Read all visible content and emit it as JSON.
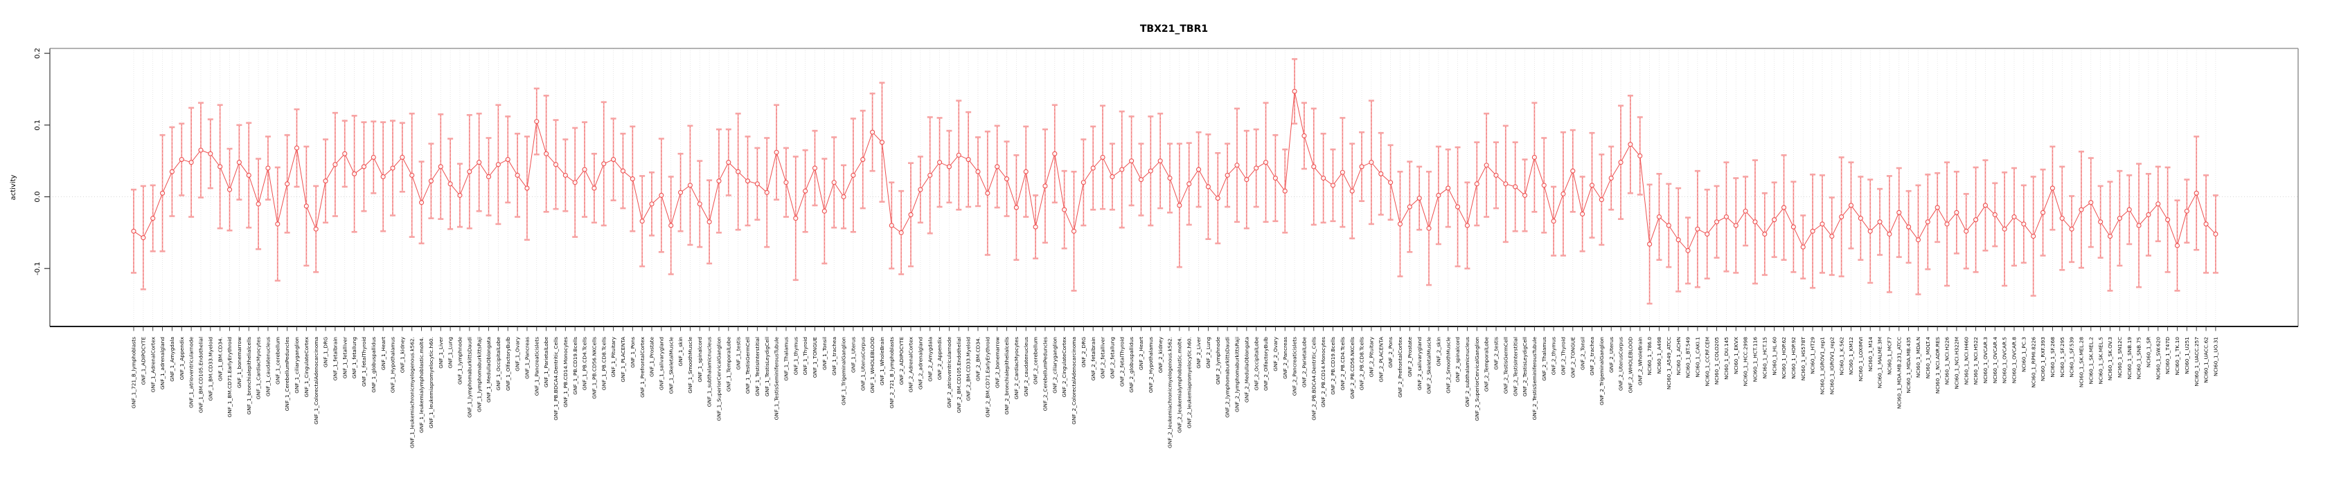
{
  "window": {
    "title": "TBX21_TBR1"
  },
  "chart_data": {
    "type": "line",
    "subtype": "point-with-error-bars",
    "title": "TBX21_TBR1",
    "xlabel": "",
    "ylabel": "activity",
    "ylim": [
      -0.18,
      0.207
    ],
    "ytick_labels": [
      "0.2",
      "0.1",
      "0.0",
      "-0.1"
    ],
    "ytick_values": [
      0.2,
      0.1,
      0.0,
      -0.1
    ],
    "zero_reference_line": true,
    "grid": "vertical-dotted-line-per-category",
    "legend": "none",
    "style": {
      "point_shape": "open-circle",
      "point_color": "#ee4e4e",
      "line_color": "#ee4e4e",
      "error_line_color": "#f07575",
      "error_line_dashed": true,
      "error_cap_color": "#f7a3a3",
      "grid_color": "#dcdcdc",
      "zero_line_color": "#c9c9c9",
      "box_color": "#9a9a9a",
      "axis_color": "#333333"
    },
    "categories": [
      "GNF_1_721_B_lymphoblasts",
      "GNF_1_ADIPOCYTE",
      "GNF_1_AdrenalCortex",
      "GNF_1_adrenalgland",
      "GNF_1_Amygdala",
      "GNF_1_Appendix",
      "GNF_1_atrioventricularnode",
      "GNF_1_BM.CD105.Endothelial",
      "GNF_1_BM.CD33.Myeloid",
      "GNF_1_BM.CD34.",
      "GNF_1_BM.CD71.EarlyErythroid",
      "GNF_1_bonemarrow",
      "GNF_1_bronchialepithelialcells",
      "GNF_1_CardiacMyocytes",
      "GNF_1_caudatenucleus",
      "GNF_1_cerebellum",
      "GNF_1_CerebellumPeduncles",
      "GNF_1_ciliaryganglion",
      "GNF_1_CingulateCortex",
      "GNF_1_ColorectalAdenocarcinoma",
      "GNF_1_DRG",
      "GNF_1_fetalbrain",
      "GNF_1_fetalliver",
      "GNF_1_fetallung",
      "GNF_1_fetalThyroid",
      "GNF_1_globuspallidus",
      "GNF_1_Heart",
      "GNF_1_Hypothalamus",
      "GNF_1_kidney",
      "GNF_1_leukemiachronicmyelogenous.k562.",
      "GNF_1_leukemialymphoblastic.molt4.",
      "GNF_1_leukemiapromyelocytic.h60.",
      "GNF_1_Liver",
      "GNF_1_Lung",
      "GNF_1_lymphnode",
      "GNF_1_lymphomaburkittsDaudi",
      "GNF_1_lymphomaburkittsRaji",
      "GNF_1_MedullaOblongata",
      "GNF_1_OccipitalLobe",
      "GNF_1_OlfactoryBulb",
      "GNF_1_Ovary",
      "GNF_1_Pancreas",
      "GNF_1_Pancreaticislets",
      "GNF_1_ParietalLobe",
      "GNF_1_PB.BDCA4.Dentritic_Cells",
      "GNF_1_PB.CD14.Monocytes",
      "GNF_1_PB.CD19.Bcells",
      "GNF_1_PB.CD4.Tcells",
      "GNF_1_PB.CD56.NKCells",
      "GNF_1_PB.CD8.Tcells",
      "GNF_1_Pituitary",
      "GNF_1_PLACENTA",
      "GNF_1_Pons",
      "GNF_1_PrefrontalCortex",
      "GNF_1_Prostate",
      "GNF_1_salivarygland",
      "GNF_1_SkeletalMuscle",
      "GNF_1_skin",
      "GNF_1_SmoothMuscle",
      "GNF_1_spinalcord",
      "GNF_1_subthalamicnucleus",
      "GNF_1_SuperiorCervicalGanglion",
      "GNF_1_TemporalLobe",
      "GNF_1_testis",
      "GNF_1_TestisGermCell",
      "GNF_1_TestisInterstitial",
      "GNF_1_TestisLeydigCell",
      "GNF_1_TestisSeminiferousTubule",
      "GNF_1_Thalamus",
      "GNF_1_thymus",
      "GNF_1_Thyroid",
      "GNF_1_TONGUE",
      "GNF_1_Tonsil",
      "GNF_1_trachea",
      "GNF_1_TrigeminalGanglion",
      "GNF_1_Uterus",
      "GNF_1_UterusCorpus",
      "GNF_1_WHOLEBLOOD",
      "GNF_1_WholeBrain",
      "GNF_2_721_B_lymphoblasts",
      "GNF_2_ADIPOCYTE",
      "GNF_2_AdrenalCortex",
      "GNF_2_adrenalgland",
      "GNF_2_Amygdala",
      "GNF_2_Appendix",
      "GNF_2_atrioventricularnode",
      "GNF_2_BM.CD105.Endothelial",
      "GNF_2_BM.CD33.Myeloid",
      "GNF_2_BM.CD34.",
      "GNF_2_BM.CD71.EarlyErythroid",
      "GNF_2_bonemarrow",
      "GNF_2_bronchialepithelialcells",
      "GNF_2_CardiacMyocytes",
      "GNF_2_caudatenucleus",
      "GNF_2_cerebellum",
      "GNF_2_CerebellumPeduncles",
      "GNF_2_ciliaryganglion",
      "GNF_2_CingulateCortex",
      "GNF_2_ColorectalAdenocarcinoma",
      "GNF_2_DRG",
      "GNF_2_fetalbrain",
      "GNF_2_fetalliver",
      "GNF_2_fetallung",
      "GNF_2_fetalThyroid",
      "GNF_2_globuspallidus",
      "GNF_2_Heart",
      "GNF_2_Hypothalamus",
      "GNF_2_kidney",
      "GNF_2_leukemiachronicmyelogenous.k562.",
      "GNF_2_leukemialymphoblastic.molt4.",
      "GNF_2_leukemiapromyelocytic.h60.",
      "GNF_2_Liver",
      "GNF_2_Lung",
      "GNF_2_lymphnode",
      "GNF_2_lymphomaburkittsDaudi",
      "GNF_2_lymphomaburkittsRaji",
      "GNF_2_MedullaOblongata",
      "GNF_2_OccipitalLobe",
      "GNF_2_OlfactoryBulb",
      "GNF_2_Ovary",
      "GNF_2_Pancreas",
      "GNF_2_Pancreaticislets",
      "GNF_2_ParietalLobe",
      "GNF_2_PB.BDCA4.Dentritic_Cells",
      "GNF_2_PB.CD14.Monocytes",
      "GNF_2_PB.CD19.Bcells",
      "GNF_2_PB.CD4.Tcells",
      "GNF_2_PB.CD56.NKCells",
      "GNF_2_PB.CD8.Tcells",
      "GNF_2_Pituitary",
      "GNF_2_PLACENTA",
      "GNF_2_Pons",
      "GNF_2_PrefrontalCortex",
      "GNF_2_Prostate",
      "GNF_2_salivarygland",
      "GNF_2_SkeletalMuscle",
      "GNF_2_skin",
      "GNF_2_SmoothMuscle",
      "GNF_2_spinalcord",
      "GNF_2_subthalamicnucleus",
      "GNF_2_SuperiorCervicalGanglion",
      "GNF_2_TemporalLobe",
      "GNF_2_testis",
      "GNF_2_TestisGermCell",
      "GNF_2_TestisInterstitial",
      "GNF_2_TestisLeydigCell",
      "GNF_2_TestisSeminiferousTubule",
      "GNF_2_Thalamus",
      "GNF_2_thymus",
      "GNF_2_Thyroid",
      "GNF_2_TONGUE",
      "GNF_2_Tonsil",
      "GNF_2_trachea",
      "GNF_2_TrigeminalGanglion",
      "GNF_2_Uterus",
      "GNF_2_UterusCorpus",
      "GNF_2_WHOLEBLOOD",
      "GNF_2_WholeBrain",
      "NCI60_1_786.0",
      "NCI60_1_A498",
      "NCI60_1_A549_ATCC",
      "NCI60_1_ACHN",
      "NCI60_1_BT.549",
      "NCI60_1_CAKI.1",
      "NCI60_1_CCRF.CEM",
      "NCI60_1_COLO205",
      "NCI60_1_DU.145",
      "NCI60_1_EKVX",
      "NCI60_1_HCC.2998",
      "NCI60_1_HCT.116",
      "NCI60_1_HCT.15",
      "NCI60_1_HL.60",
      "NCI60_1_HOP.62",
      "NCI60_1_HOP.92",
      "NCI60_1_HS578T",
      "NCI60_1_HT29",
      "NCI60_1_IGROV1_rep1",
      "NCI60_1_IGROV1_rep2",
      "NCI60_1_K.562",
      "NCI60_1_KM12",
      "NCI60_1_LOXIMVI",
      "NCI60_1_M14",
      "NCI60_1_MALME.3M",
      "NCI60_1_MCF7",
      "NCI60_1_MDA.MB.231_ATCC",
      "NCI60_1_MDA.MB.435",
      "NCI60_1_MDA.N",
      "NCI60_1_MOLT.4",
      "NCI60_1_NCI.ADR.RES",
      "NCI60_1_NCI.H226",
      "NCI60_1_NCI.H322M",
      "NCI60_1_NCI.H460",
      "NCI60_1_NCI.H522",
      "NCI60_1_OVCAR.3",
      "NCI60_1_OVCAR.4",
      "NCI60_1_OVCAR.5",
      "NCI60_1_OVCAR.8",
      "NCI60_1_PC.3",
      "NCI60_1_RPMI.8226",
      "NCI60_1_RXF.393",
      "NCI60_1_SF.268",
      "NCI60_1_SF.295",
      "NCI60_1_SF.539",
      "NCI60_1_SK.MEL.28",
      "NCI60_1_SK.MEL.2",
      "NCI60_1_SK.MEL.5",
      "NCI60_1_SK.OV.3",
      "NCI60_1_SN12C",
      "NCI60_1_SNB.19",
      "NCI60_1_SNB.75",
      "NCI60_1_SR",
      "NCI60_1_SW.620",
      "NCI60_1_T47D",
      "NCI60_1_TK.10",
      "NCI60_1_U251",
      "NCI60_1_UACC.257",
      "NCI60_1_UACC.62",
      "NCI60_1_UO.31"
    ],
    "values": [
      -0.048,
      -0.057,
      -0.03,
      0.005,
      0.035,
      0.052,
      0.048,
      0.065,
      0.06,
      0.042,
      0.01,
      0.048,
      0.03,
      -0.01,
      0.04,
      -0.038,
      0.018,
      0.068,
      -0.013,
      -0.045,
      0.022,
      0.045,
      0.06,
      0.032,
      0.042,
      0.055,
      0.028,
      0.04,
      0.055,
      0.03,
      -0.008,
      0.022,
      0.042,
      0.018,
      0.002,
      0.035,
      0.048,
      0.028,
      0.045,
      0.052,
      0.03,
      0.012,
      0.105,
      0.06,
      0.045,
      0.03,
      0.02,
      0.038,
      0.012,
      0.046,
      0.052,
      0.036,
      0.025,
      -0.034,
      -0.01,
      0.002,
      -0.04,
      0.006,
      0.016,
      -0.01,
      -0.035,
      0.022,
      0.048,
      0.035,
      0.022,
      0.018,
      0.006,
      0.062,
      0.02,
      -0.03,
      0.008,
      0.04,
      -0.02,
      0.02,
      0.0,
      0.03,
      0.052,
      0.09,
      0.076,
      -0.04,
      -0.05,
      -0.025,
      0.01,
      0.03,
      0.048,
      0.042,
      0.058,
      0.052,
      0.035,
      0.005,
      0.042,
      0.025,
      -0.015,
      0.035,
      -0.042,
      0.015,
      0.06,
      -0.018,
      -0.048,
      0.02,
      0.04,
      0.055,
      0.028,
      0.038,
      0.05,
      0.024,
      0.036,
      0.05,
      0.026,
      -0.012,
      0.018,
      0.038,
      0.014,
      -0.002,
      0.03,
      0.044,
      0.024,
      0.04,
      0.048,
      0.026,
      0.008,
      0.147,
      0.085,
      0.042,
      0.026,
      0.016,
      0.034,
      0.008,
      0.042,
      0.048,
      0.032,
      0.02,
      -0.038,
      -0.014,
      -0.002,
      -0.044,
      0.002,
      0.012,
      -0.014,
      -0.04,
      0.018,
      0.044,
      0.03,
      0.018,
      0.014,
      0.002,
      0.055,
      0.016,
      -0.034,
      0.004,
      0.036,
      -0.024,
      0.016,
      -0.004,
      0.026,
      0.048,
      0.073,
      0.057,
      -0.066,
      -0.028,
      -0.04,
      -0.06,
      -0.075,
      -0.045,
      -0.052,
      -0.035,
      -0.028,
      -0.04,
      -0.02,
      -0.035,
      -0.052,
      -0.032,
      -0.015,
      -0.042,
      -0.07,
      -0.048,
      -0.038,
      -0.055,
      -0.028,
      -0.012,
      -0.03,
      -0.048,
      -0.035,
      -0.052,
      -0.022,
      -0.042,
      -0.06,
      -0.035,
      -0.015,
      -0.038,
      -0.022,
      -0.048,
      -0.032,
      -0.012,
      -0.025,
      -0.045,
      -0.028,
      -0.038,
      -0.055,
      -0.022,
      0.012,
      -0.03,
      -0.045,
      -0.018,
      -0.008,
      -0.035,
      -0.055,
      -0.03,
      -0.018,
      -0.04,
      -0.025,
      -0.01,
      -0.032,
      -0.068,
      -0.02,
      0.005,
      -0.038,
      -0.052
    ],
    "error": [
      0.058,
      0.072,
      0.046,
      0.081,
      0.062,
      0.05,
      0.076,
      0.066,
      0.048,
      0.086,
      0.057,
      0.052,
      0.073,
      0.063,
      0.044,
      0.079,
      0.068,
      0.054,
      0.083,
      0.06,
      0.058,
      0.072,
      0.046,
      0.081,
      0.062,
      0.05,
      0.076,
      0.066,
      0.048,
      0.086,
      0.057,
      0.052,
      0.073,
      0.063,
      0.044,
      0.079,
      0.068,
      0.054,
      0.083,
      0.06,
      0.058,
      0.072,
      0.046,
      0.081,
      0.062,
      0.05,
      0.076,
      0.066,
      0.048,
      0.086,
      0.057,
      0.052,
      0.073,
      0.063,
      0.044,
      0.079,
      0.068,
      0.054,
      0.083,
      0.06,
      0.058,
      0.072,
      0.046,
      0.081,
      0.062,
      0.05,
      0.076,
      0.066,
      0.048,
      0.086,
      0.057,
      0.052,
      0.073,
      0.063,
      0.044,
      0.079,
      0.068,
      0.054,
      0.083,
      0.06,
      0.058,
      0.072,
      0.046,
      0.081,
      0.062,
      0.05,
      0.076,
      0.066,
      0.048,
      0.086,
      0.057,
      0.052,
      0.073,
      0.063,
      0.044,
      0.079,
      0.068,
      0.054,
      0.083,
      0.06,
      0.058,
      0.072,
      0.046,
      0.081,
      0.062,
      0.05,
      0.076,
      0.066,
      0.048,
      0.086,
      0.057,
      0.052,
      0.073,
      0.063,
      0.044,
      0.079,
      0.068,
      0.054,
      0.083,
      0.06,
      0.058,
      0.045,
      0.046,
      0.081,
      0.062,
      0.05,
      0.076,
      0.066,
      0.048,
      0.086,
      0.057,
      0.052,
      0.073,
      0.063,
      0.044,
      0.079,
      0.068,
      0.054,
      0.083,
      0.06,
      0.058,
      0.072,
      0.046,
      0.081,
      0.062,
      0.05,
      0.076,
      0.066,
      0.048,
      0.086,
      0.057,
      0.052,
      0.073,
      0.063,
      0.044,
      0.079,
      0.068,
      0.054,
      0.083,
      0.06,
      0.058,
      0.072,
      0.046,
      0.081,
      0.062,
      0.05,
      0.076,
      0.066,
      0.048,
      0.086,
      0.057,
      0.052,
      0.073,
      0.063,
      0.044,
      0.079,
      0.068,
      0.054,
      0.083,
      0.06,
      0.058,
      0.072,
      0.046,
      0.081,
      0.062,
      0.05,
      0.076,
      0.066,
      0.048,
      0.086,
      0.057,
      0.052,
      0.073,
      0.063,
      0.044,
      0.079,
      0.068,
      0.054,
      0.083,
      0.06,
      0.058,
      0.072,
      0.046,
      0.081,
      0.062,
      0.05,
      0.076,
      0.066,
      0.048,
      0.086,
      0.057,
      0.052,
      0.073,
      0.063,
      0.044,
      0.079,
      0.068,
      0.054
    ]
  }
}
